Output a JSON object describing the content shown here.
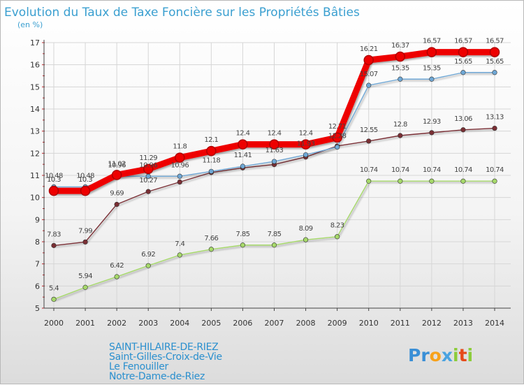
{
  "chart_data": {
    "type": "line",
    "title": "Evolution du Taux de Taxe Foncière sur les Propriétés Bâties",
    "ylabel": "(en %)",
    "xlabel": "",
    "ylim": [
      5,
      17
    ],
    "yticks": [
      "5",
      "6",
      "7",
      "8",
      "9",
      "10",
      "11",
      "12",
      "13",
      "14",
      "15",
      "16",
      "17"
    ],
    "categories": [
      "2000",
      "2001",
      "2002",
      "2003",
      "2004",
      "2005",
      "2006",
      "2007",
      "2008",
      "2009",
      "2010",
      "2011",
      "2012",
      "2013",
      "2014"
    ],
    "series": [
      {
        "name": "SAINT-HILAIRE-DE-RIEZ",
        "color": "#ee0000",
        "values": [
          10.3,
          10.3,
          11.02,
          11.29,
          11.8,
          12.1,
          12.4,
          12.4,
          12.4,
          12.71,
          16.21,
          16.37,
          16.57,
          16.57,
          16.57
        ],
        "labels": [
          "10.3",
          "10.3",
          "11.02",
          "11.29",
          "11.8",
          "12.1",
          "12.4",
          "12.4",
          "12.4",
          "12.71",
          "16.21",
          "16.37",
          "16.57",
          "16.57",
          "16.57"
        ]
      },
      {
        "name": "Saint-Gilles-Croix-de-Vie",
        "color": "#6fa8d6",
        "values": [
          10.48,
          10.48,
          10.96,
          10.96,
          10.96,
          11.18,
          11.41,
          11.63,
          11.93,
          12.28,
          15.07,
          15.35,
          15.35,
          15.65,
          15.65
        ],
        "labels": [
          "10.48",
          "10.48",
          "10.96",
          "10.96",
          "10.96",
          "11.18",
          "11.41",
          "11.63",
          "11.93",
          "12.28",
          "15.07",
          "15.35",
          "15.35",
          "15.65",
          "15.65"
        ]
      },
      {
        "name": "Le Fenouiller",
        "color": "#a6d96a",
        "values": [
          5.4,
          5.94,
          6.42,
          6.92,
          7.4,
          7.66,
          7.85,
          7.85,
          8.09,
          8.23,
          10.74,
          10.74,
          10.74,
          10.74,
          10.74
        ],
        "labels": [
          "5.4",
          "5.94",
          "6.42",
          "6.92",
          "7.4",
          "7.66",
          "7.85",
          "7.85",
          "8.09",
          "8.23",
          "10.74",
          "10.74",
          "10.74",
          "10.74",
          "10.74"
        ]
      },
      {
        "name": "Notre-Dame-de-Riez",
        "color": "#7a2f34",
        "values": [
          7.83,
          7.99,
          9.69,
          10.27,
          10.7,
          11.13,
          11.34,
          11.49,
          11.83,
          12.33,
          12.55,
          12.8,
          12.93,
          13.06,
          13.13
        ],
        "labels": [
          "7.83",
          "7.99",
          "9.69",
          "10.27",
          "",
          "",
          "",
          "",
          "",
          "",
          "12.55",
          "12.8",
          "12.93",
          "13.06",
          "13.13"
        ]
      }
    ],
    "legend": "bottom-left"
  },
  "logo": {
    "text": "Proxiti"
  }
}
